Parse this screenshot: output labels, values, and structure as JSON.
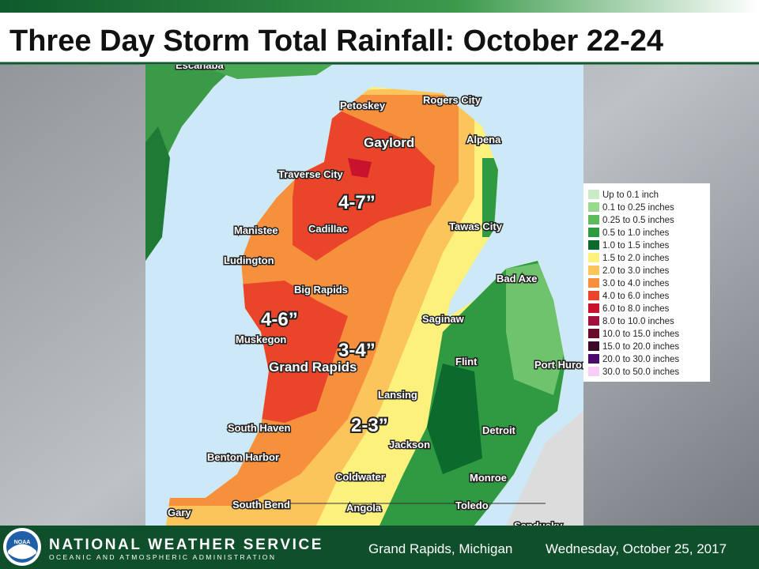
{
  "header": {
    "title": "Three Day Storm Total Rainfall: October 22-24"
  },
  "map": {
    "cities": [
      "Petoskey",
      "Rogers City",
      "Gaylord",
      "Alpena",
      "Traverse City",
      "Manistee",
      "Cadillac",
      "Tawas City",
      "Ludington",
      "Big Rapids",
      "Bad Axe",
      "Saginaw",
      "Muskegon",
      "Grand Rapids",
      "Flint",
      "Port Huron",
      "Lansing",
      "South Haven",
      "Detroit",
      "Jackson",
      "Benton Harbor",
      "Coldwater",
      "Monroe",
      "Gary",
      "South Bend",
      "Angola",
      "Toledo",
      "Sandusky",
      "Escanaba"
    ],
    "annotations": [
      "4-7”",
      "4-6”",
      "3-4”",
      "2-3”"
    ]
  },
  "legend": {
    "items": [
      {
        "label": "Up to 0.1 inch",
        "color": "#c9ecc6"
      },
      {
        "label": "0.1 to 0.25 inches",
        "color": "#98d98f"
      },
      {
        "label": "0.25 to 0.5 inches",
        "color": "#5dbb5e"
      },
      {
        "label": "0.5 to 1.0 inches",
        "color": "#2f9a41"
      },
      {
        "label": "1.0 to 1.5 inches",
        "color": "#0c6a2c"
      },
      {
        "label": "1.5 to 2.0 inches",
        "color": "#fdf17d"
      },
      {
        "label": "2.0 to 3.0 inches",
        "color": "#fcc55c"
      },
      {
        "label": "3.0 to 4.0 inches",
        "color": "#f6903c"
      },
      {
        "label": "4.0 to 6.0 inches",
        "color": "#ea452b"
      },
      {
        "label": "6.0 to 8.0 inches",
        "color": "#c9122e"
      },
      {
        "label": "8.0 to 10.0 inches",
        "color": "#a3103d"
      },
      {
        "label": "10.0 to 15.0 inches",
        "color": "#6a0b2b"
      },
      {
        "label": "15.0 to 20.0 inches",
        "color": "#3b0a27"
      },
      {
        "label": "20.0 to 30.0 inches",
        "color": "#4c0a6c"
      },
      {
        "label": "30.0 to 50.0 inches",
        "color": "#f7cdf6"
      }
    ]
  },
  "footer": {
    "agency": "NATIONAL WEATHER SERVICE",
    "subagency": "OCEANIC AND ATMOSPHERIC ADMINISTRATION",
    "logo": "NOAA",
    "location": "Grand Rapids, Michigan",
    "date": "Wednesday, October 25, 2017"
  }
}
